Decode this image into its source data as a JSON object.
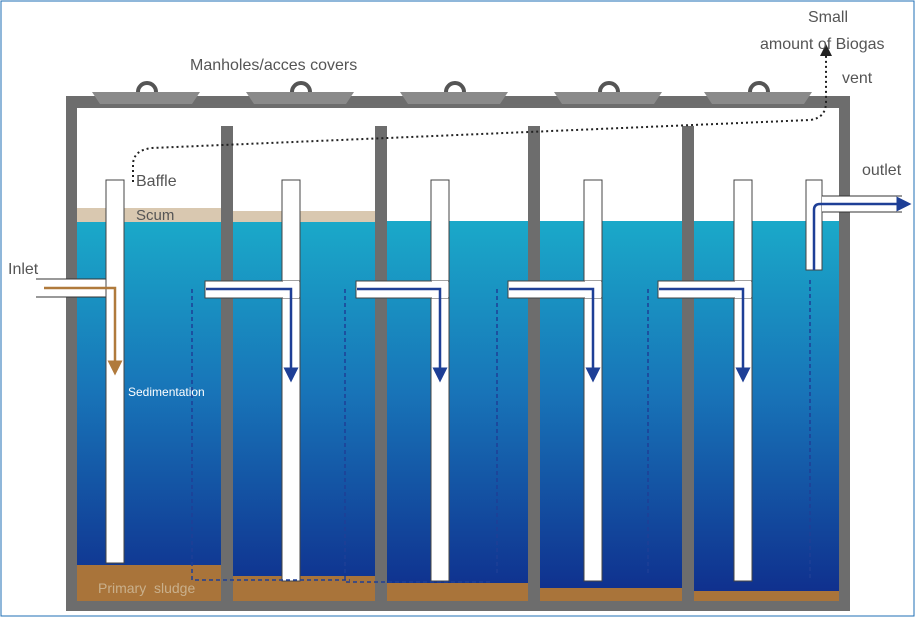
{
  "labels": {
    "manholes": "Manholes/acces covers",
    "small": "Small",
    "biogas": "amount of Biogas",
    "vent": "vent",
    "baffle": "Baffle",
    "scum": "Scum",
    "inlet": "Inlet",
    "outlet": "outlet",
    "sedimentation": "Sedimentation",
    "sludge": "Primary  sludge"
  },
  "colors": {
    "tank_wall": "#6d6d6d",
    "cover": "#888888",
    "water_top": "#1aa9c9",
    "water_bottom": "#0f2d8c",
    "scum": "#d9c8b0",
    "sludge": "#a9743a",
    "flow_arrow": "#1e3f96",
    "inlet_arrow": "#b07a3c",
    "frame_border": "#1f6fb5"
  },
  "structure": {
    "chambers": 5,
    "manholes": 5,
    "baffles": 6
  }
}
